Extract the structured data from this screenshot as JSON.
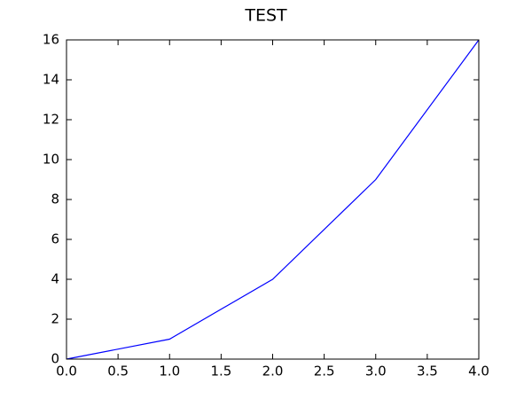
{
  "chart_data": {
    "type": "line",
    "title": "TEST",
    "x": [
      0,
      1,
      2,
      3,
      4
    ],
    "values": [
      0,
      1,
      4,
      9,
      16
    ],
    "color": "#0000ff",
    "xlim": [
      0,
      4
    ],
    "xticks": [
      {
        "value": 0,
        "label": "0.0"
      },
      0.5,
      {
        "value": 1,
        "label": "1.0"
      },
      1.5,
      {
        "value": 2,
        "label": "2.0"
      },
      2.5,
      {
        "value": 3,
        "label": "3.0"
      },
      3.5,
      {
        "value": 4,
        "label": "4.0"
      }
    ],
    "ylim": [
      0,
      16
    ],
    "yticks": [
      0,
      2,
      4,
      6,
      8,
      10,
      12,
      14,
      16
    ],
    "grid": false
  }
}
